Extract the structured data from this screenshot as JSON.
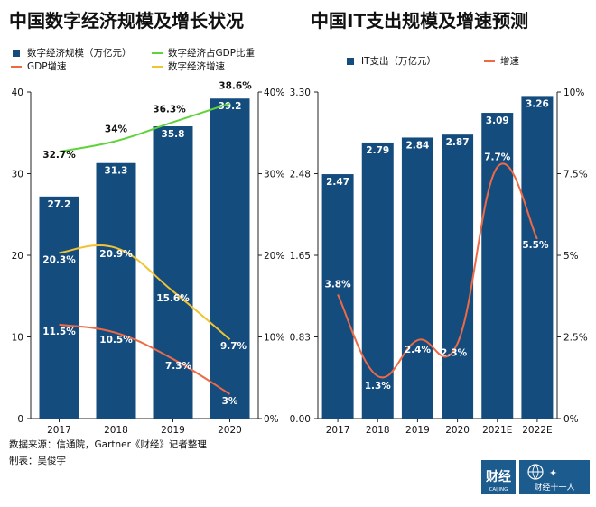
{
  "colors": {
    "bar": "#154c7e",
    "green": "#5fd33a",
    "orange": "#ee6a45",
    "yellow": "#f1c232",
    "text": "#111111",
    "white": "#ffffff",
    "logo": "#1c5b8e"
  },
  "chart_data": [
    {
      "type": "bar",
      "title": "中国数字经济规模及增长状况",
      "categories": [
        "2017",
        "2018",
        "2019",
        "2020"
      ],
      "y_left_ticks": [
        "0",
        "10",
        "20",
        "30",
        "40"
      ],
      "y_right_ticks": [
        "0%",
        "10%",
        "20%",
        "30%",
        "40%"
      ],
      "ylim_left": [
        0,
        40
      ],
      "ylim_right": [
        0,
        40
      ],
      "series": [
        {
          "name": "数字经济规模（万亿元）",
          "kind": "bar",
          "axis": "left",
          "color": "#154c7e",
          "values": [
            27.2,
            31.3,
            35.8,
            39.2
          ],
          "labels": [
            "27.2",
            "31.3",
            "35.8",
            "39.2"
          ]
        },
        {
          "name": "数字经济占GDP比重",
          "kind": "line",
          "axis": "right",
          "color": "#5fd33a",
          "values": [
            32.7,
            34,
            36.3,
            38.6
          ],
          "labels": [
            "32.7%",
            "34%",
            "36.3%",
            "38.6%"
          ]
        },
        {
          "name": "GDP增速",
          "kind": "line",
          "axis": "right",
          "color": "#ee6a45",
          "values": [
            11.5,
            10.5,
            7.3,
            3
          ],
          "labels": [
            "11.5%",
            "10.5%",
            "7.3%",
            "3%"
          ]
        },
        {
          "name": "数字经济增速",
          "kind": "line",
          "axis": "right",
          "color": "#f1c232",
          "values": [
            20.3,
            20.9,
            15.6,
            9.7
          ],
          "labels": [
            "20.3%",
            "20.9%",
            "15.6%",
            "9.7%"
          ]
        }
      ],
      "legend": "top",
      "grid": false
    },
    {
      "type": "bar",
      "title": "中国IT支出规模及增速预测",
      "categories": [
        "2017",
        "2018",
        "2019",
        "2020",
        "2021E",
        "2022E"
      ],
      "y_left_ticks": [
        "0.00",
        "0.83",
        "1.65",
        "2.48",
        "3.30"
      ],
      "y_right_ticks": [
        "0%",
        "2.5%",
        "5%",
        "7.5%",
        "10%"
      ],
      "ylim_left": [
        0,
        3.3
      ],
      "ylim_right": [
        0,
        10
      ],
      "series": [
        {
          "name": "IT支出（万亿元）",
          "kind": "bar",
          "axis": "left",
          "color": "#154c7e",
          "values": [
            2.47,
            2.79,
            2.84,
            2.87,
            3.09,
            3.26
          ],
          "labels": [
            "2.47",
            "2.79",
            "2.84",
            "2.87",
            "3.09",
            "3.26"
          ]
        },
        {
          "name": "增速",
          "kind": "line",
          "axis": "right",
          "color": "#ee6a45",
          "values": [
            3.8,
            1.3,
            2.4,
            2.3,
            7.7,
            5.5
          ],
          "labels": [
            "3.8%",
            "1.3%",
            "2.4%",
            "2.3%",
            "7.7%",
            "5.5%"
          ]
        }
      ],
      "legend": "top",
      "grid": false
    }
  ],
  "footer": {
    "source": "数据来源：信通院，Gartner《财经》记者整理",
    "author": "制表：吴俊宇"
  },
  "logos": {
    "caijing_main": "财经",
    "caijing_sub": "CAIJING",
    "caijing11": "财经十一人"
  }
}
